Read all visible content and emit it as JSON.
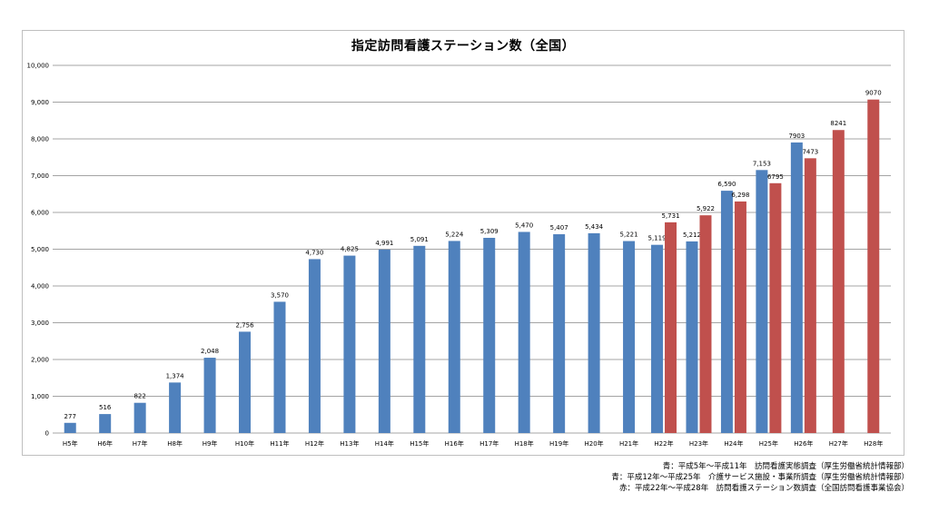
{
  "chart_data": {
    "type": "bar",
    "title": "指定訪問看護ステーション数（全国）",
    "categories": [
      "H5年",
      "H6年",
      "H7年",
      "H8年",
      "H9年",
      "H10年",
      "H11年",
      "H12年",
      "H13年",
      "H14年",
      "H15年",
      "H16年",
      "H17年",
      "H18年",
      "H19年",
      "H20年",
      "H21年",
      "H22年",
      "H23年",
      "H24年",
      "H25年",
      "H26年",
      "H27年",
      "H28年"
    ],
    "ylim": [
      0,
      10000
    ],
    "yticks": [
      0,
      1000,
      2000,
      3000,
      4000,
      5000,
      6000,
      7000,
      8000,
      9000,
      10000
    ],
    "ytick_labels": [
      "0",
      "1,000",
      "2,000",
      "3,000",
      "4,000",
      "5,000",
      "6,000",
      "7,000",
      "8,000",
      "9,000",
      "10,000"
    ],
    "grid": true,
    "series": [
      {
        "color": "#4f81bd",
        "values": [
          277,
          516,
          822,
          1374,
          2048,
          2756,
          3570,
          4730,
          4825,
          4991,
          5091,
          5224,
          5309,
          5470,
          5407,
          5434,
          5221,
          5119,
          5212,
          6590,
          7153,
          7903,
          null,
          null
        ],
        "labels": [
          "277",
          "516",
          "822",
          "1,374",
          "2,048",
          "2,756",
          "3,570",
          "4,730",
          "4,825",
          "4,991",
          "5,091",
          "5,224",
          "5,309",
          "5,470",
          "5,407",
          "5,434",
          "5,221",
          "5,119",
          "5,212",
          "6,590",
          "7,153",
          "7903",
          "",
          ""
        ]
      },
      {
        "color": "#c0504d",
        "values": [
          null,
          null,
          null,
          null,
          null,
          null,
          null,
          null,
          null,
          null,
          null,
          null,
          null,
          null,
          null,
          null,
          null,
          5731,
          5922,
          6298,
          6795,
          7473,
          8241,
          9070
        ],
        "labels": [
          "",
          "",
          "",
          "",
          "",
          "",
          "",
          "",
          "",
          "",
          "",
          "",
          "",
          "",
          "",
          "",
          "",
          "5,731",
          "5,922",
          "6,298",
          "6795",
          "7473",
          "8241",
          "9070"
        ]
      }
    ]
  },
  "sources": {
    "line1": "青：平成5年～平成11年　訪問看護実態調査（厚生労働省統計情報部）",
    "line2": "青：平成12年～平成25年　介護サービス施設・事業所調査（厚生労働省統計情報部）",
    "line3": "赤：平成22年～平成28年　訪問看護ステーション数調査（全国訪問看護事業協会）"
  }
}
